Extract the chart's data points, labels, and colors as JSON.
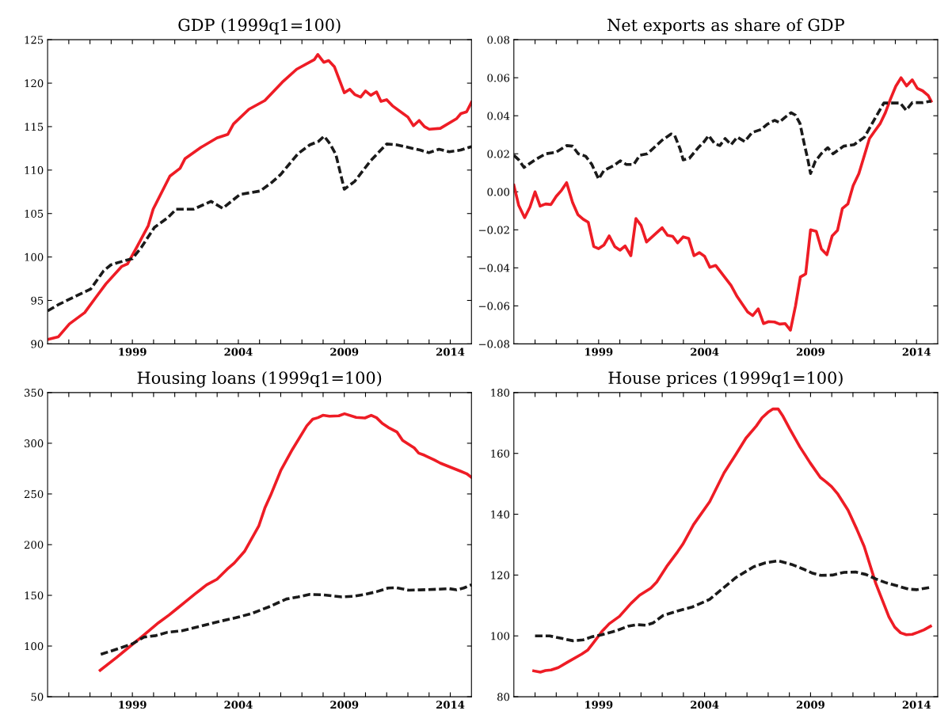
{
  "chart_data": [
    {
      "type": "line",
      "title": "GDP (1999q1=100)",
      "xlim": [
        1995,
        2015
      ],
      "ylim": [
        90,
        125
      ],
      "yticks": [
        90,
        95,
        100,
        105,
        110,
        115,
        120,
        125
      ],
      "xticks": [
        {
          "value": 1996,
          "label": null
        },
        {
          "value": 1997,
          "label": null
        },
        {
          "value": 1998,
          "label": null
        },
        1999,
        {
          "value": 2000,
          "label": null
        },
        {
          "value": 2001,
          "label": null
        },
        {
          "value": 2002,
          "label": null
        },
        {
          "value": 2003,
          "label": null
        },
        2004,
        {
          "value": 2005,
          "label": null
        },
        {
          "value": 2006,
          "label": null
        },
        {
          "value": 2007,
          "label": null
        },
        {
          "value": 2008,
          "label": null
        },
        2009,
        {
          "value": 2010,
          "label": null
        },
        {
          "value": 2011,
          "label": null
        },
        {
          "value": 2012,
          "label": null
        },
        {
          "value": 2013,
          "label": null
        },
        2014
      ],
      "grid": false,
      "series": [
        {
          "color": "#ee1c25",
          "line_style": "solid",
          "x": [
            1995.0,
            1995.5,
            1996.03,
            1996.75,
            1997.26,
            1997.75,
            1998.49,
            1998.77,
            1999.2,
            1999.75,
            1999.98,
            2000.77,
            2001.25,
            2001.48,
            2002.23,
            2002.99,
            2003.5,
            2003.77,
            2004.5,
            2005.25,
            2006.07,
            2006.75,
            2007.58,
            2007.75,
            2008.03,
            2008.26,
            2008.53,
            2009.0,
            2009.26,
            2009.49,
            2009.77,
            2010.0,
            2010.25,
            2010.52,
            2010.73,
            2011.0,
            2011.27,
            2012.0,
            2012.26,
            2012.53,
            2012.78,
            2013.01,
            2013.53,
            2014.29,
            2014.5,
            2014.77,
            2015.0
          ],
          "values": [
            90.5,
            90.8,
            92.3,
            93.6,
            95.3,
            96.9,
            98.9,
            99.2,
            101.1,
            103.6,
            105.5,
            109.3,
            110.2,
            111.3,
            112.6,
            113.7,
            114.1,
            115.3,
            117.0,
            118.0,
            120.1,
            121.6,
            122.7,
            123.3,
            122.4,
            122.6,
            121.9,
            118.9,
            119.3,
            118.7,
            118.4,
            119.1,
            118.6,
            119.0,
            117.9,
            118.1,
            117.4,
            116.1,
            115.1,
            115.7,
            115.0,
            114.7,
            114.8,
            115.9,
            116.5,
            116.7,
            117.8
          ]
        },
        {
          "color": "#1a1a1a",
          "line_style": "dashed",
          "x": [
            1995.0,
            1995.5,
            1996.5,
            1997.03,
            1997.64,
            1997.99,
            1998.53,
            1999.0,
            1999.42,
            2000.04,
            2000.66,
            2001.07,
            2001.89,
            2002.71,
            2003.26,
            2004.08,
            2005.04,
            2005.59,
            2006.0,
            2006.82,
            2007.37,
            2007.78,
            2008.05,
            2008.33,
            2008.6,
            2009.0,
            2009.49,
            2010.25,
            2011.0,
            2011.48,
            2012.03,
            2012.58,
            2012.99,
            2013.47,
            2013.95,
            2014.49,
            2015.0
          ],
          "values": [
            93.8,
            94.5,
            95.7,
            96.3,
            98.4,
            99.1,
            99.5,
            99.8,
            101.1,
            103.4,
            104.5,
            105.5,
            105.5,
            106.4,
            105.6,
            107.2,
            107.6,
            108.6,
            109.5,
            111.9,
            112.9,
            113.3,
            113.9,
            113.0,
            111.8,
            107.8,
            108.7,
            111.1,
            113.0,
            112.9,
            112.6,
            112.3,
            112.0,
            112.4,
            112.1,
            112.3,
            112.7
          ]
        }
      ]
    },
    {
      "type": "line",
      "title": "Net exports as share of GDP",
      "xlim": [
        1995,
        2015
      ],
      "ylim": [
        -0.08,
        0.08
      ],
      "yticks": [
        {
          "value": -0.08,
          "label": "−0.08"
        },
        {
          "value": -0.06,
          "label": "−0.06"
        },
        {
          "value": -0.04,
          "label": "−0.04"
        },
        {
          "value": -0.02,
          "label": "−0.02"
        },
        {
          "value": 0,
          "label": "0.00"
        },
        {
          "value": 0.02,
          "label": "0.02"
        },
        {
          "value": 0.04,
          "label": "0.04"
        },
        {
          "value": 0.06,
          "label": "0.06"
        },
        {
          "value": 0.08,
          "label": "0.08"
        }
      ],
      "xticks": [
        {
          "value": 1996,
          "label": null
        },
        {
          "value": 1997,
          "label": null
        },
        {
          "value": 1998,
          "label": null
        },
        1999,
        {
          "value": 2000,
          "label": null
        },
        {
          "value": 2001,
          "label": null
        },
        {
          "value": 2002,
          "label": null
        },
        {
          "value": 2003,
          "label": null
        },
        2004,
        {
          "value": 2005,
          "label": null
        },
        {
          "value": 2006,
          "label": null
        },
        {
          "value": 2007,
          "label": null
        },
        {
          "value": 2008,
          "label": null
        },
        2009,
        {
          "value": 2010,
          "label": null
        },
        {
          "value": 2011,
          "label": null
        },
        {
          "value": 2012,
          "label": null
        },
        {
          "value": 2013,
          "label": null
        },
        2014
      ],
      "grid": false,
      "series": [
        {
          "color": "#ee1c25",
          "line_style": "solid",
          "x": [
            1995.0,
            1995.23,
            1995.51,
            1995.76,
            1996.0,
            1996.24,
            1996.5,
            1996.75,
            1997.0,
            1997.25,
            1997.49,
            1997.77,
            1998.02,
            1998.27,
            1998.51,
            1998.77,
            1999.0,
            1999.25,
            1999.5,
            1999.76,
            2000.01,
            2000.25,
            2000.52,
            2000.76,
            2001.0,
            2001.26,
            2002.0,
            2002.25,
            2002.49,
            2002.73,
            2002.99,
            2003.25,
            2003.5,
            2003.75,
            2004.0,
            2004.25,
            2004.52,
            2005.25,
            2005.54,
            2006.03,
            2006.27,
            2006.53,
            2006.78,
            2007.02,
            2007.3,
            2007.54,
            2007.8,
            2008.05,
            2008.29,
            2008.52,
            2008.77,
            2009.0,
            2009.27,
            2009.51,
            2009.77,
            2010.02,
            2010.27,
            2010.5,
            2010.76,
            2011.01,
            2011.28,
            2011.54,
            2011.78,
            2012.03,
            2012.29,
            2012.53,
            2012.77,
            2013.02,
            2013.27,
            2013.53,
            2013.8,
            2014.04,
            2014.29,
            2014.55,
            2014.69
          ],
          "values": [
            0.0035,
            -0.0072,
            -0.0136,
            -0.008,
            0.0,
            -0.0075,
            -0.0064,
            -0.0067,
            -0.0024,
            0.0008,
            0.0048,
            -0.0056,
            -0.012,
            -0.0144,
            -0.016,
            -0.0288,
            -0.0299,
            -0.028,
            -0.0232,
            -0.0288,
            -0.0307,
            -0.0285,
            -0.0336,
            -0.0141,
            -0.0176,
            -0.0264,
            -0.0189,
            -0.0229,
            -0.0234,
            -0.0269,
            -0.0237,
            -0.0246,
            -0.0336,
            -0.032,
            -0.0339,
            -0.0397,
            -0.0387,
            -0.0493,
            -0.0552,
            -0.0632,
            -0.0651,
            -0.0616,
            -0.0693,
            -0.0683,
            -0.0685,
            -0.0696,
            -0.0693,
            -0.0728,
            -0.06,
            -0.0448,
            -0.0432,
            -0.02,
            -0.0208,
            -0.0301,
            -0.0331,
            -0.0232,
            -0.0203,
            -0.0088,
            -0.0064,
            0.0032,
            0.0096,
            0.0192,
            0.028,
            0.032,
            0.036,
            0.0416,
            0.0488,
            0.0555,
            0.06,
            0.0557,
            0.0589,
            0.0544,
            0.0531,
            0.0507,
            0.0477
          ]
        },
        {
          "color": "#1a1a1a",
          "line_style": "dashed",
          "x": [
            1995.0,
            1995.23,
            1995.48,
            1996.0,
            1996.5,
            1996.99,
            1997.49,
            1997.77,
            1998.04,
            1998.39,
            1998.68,
            1999.0,
            1999.25,
            1999.73,
            2000.02,
            2000.31,
            2000.66,
            2000.94,
            2001.3,
            2002.0,
            2002.42,
            2002.59,
            2002.85,
            2002.99,
            2003.28,
            2003.7,
            2003.98,
            2004.19,
            2004.48,
            2004.72,
            2004.97,
            2005.25,
            2005.54,
            2005.89,
            2006.24,
            2006.67,
            2006.95,
            2007.3,
            2007.51,
            2007.8,
            2008.08,
            2008.29,
            2008.5,
            2008.71,
            2008.86,
            2009.0,
            2009.22,
            2009.5,
            2009.81,
            2010.06,
            2010.56,
            2011.05,
            2011.55,
            2012.03,
            2012.46,
            2012.95,
            2013.23,
            2013.51,
            2013.8,
            2014.29,
            2014.69
          ],
          "values": [
            0.0192,
            0.0168,
            0.0128,
            0.0168,
            0.02,
            0.0208,
            0.0243,
            0.024,
            0.02,
            0.0187,
            0.0144,
            0.0067,
            0.0112,
            0.0139,
            0.0163,
            0.0144,
            0.0144,
            0.0192,
            0.02,
            0.0272,
            0.0304,
            0.0296,
            0.0224,
            0.0168,
            0.0176,
            0.0232,
            0.0264,
            0.0296,
            0.0253,
            0.0243,
            0.028,
            0.0248,
            0.0288,
            0.0264,
            0.0312,
            0.0328,
            0.0355,
            0.0376,
            0.0365,
            0.0392,
            0.0416,
            0.0403,
            0.036,
            0.0248,
            0.0176,
            0.0096,
            0.016,
            0.02,
            0.0232,
            0.02,
            0.024,
            0.0248,
            0.0288,
            0.0384,
            0.0467,
            0.0467,
            0.0467,
            0.0429,
            0.0469,
            0.0469,
            0.0477
          ]
        }
      ]
    },
    {
      "type": "line",
      "title": "Housing loans (1999q1=100)",
      "xlim": [
        1995,
        2015
      ],
      "ylim": [
        50,
        350
      ],
      "yticks": [
        50,
        100,
        150,
        200,
        250,
        300,
        350
      ],
      "xticks": [
        {
          "value": 1996,
          "label": null
        },
        {
          "value": 1997,
          "label": null
        },
        {
          "value": 1998,
          "label": null
        },
        1999,
        {
          "value": 2000,
          "label": null
        },
        {
          "value": 2001,
          "label": null
        },
        {
          "value": 2002,
          "label": null
        },
        {
          "value": 2003,
          "label": null
        },
        2004,
        {
          "value": 2005,
          "label": null
        },
        {
          "value": 2006,
          "label": null
        },
        {
          "value": 2007,
          "label": null
        },
        {
          "value": 2008,
          "label": null
        },
        2009,
        {
          "value": 2010,
          "label": null
        },
        {
          "value": 2011,
          "label": null
        },
        {
          "value": 2012,
          "label": null
        },
        {
          "value": 2013,
          "label": null
        },
        2014
      ],
      "grid": false,
      "series": [
        {
          "color": "#ee1c25",
          "line_style": "solid",
          "x": [
            1997.48,
            1998.26,
            1999.0,
            1999.42,
            2000.24,
            2000.73,
            2001.14,
            2001.96,
            2002.51,
            2002.99,
            2003.53,
            2003.81,
            2004.29,
            2004.97,
            2005.25,
            2005.52,
            2006.0,
            2006.55,
            2007.23,
            2007.51,
            2007.75,
            2007.99,
            2008.3,
            2008.74,
            2009.01,
            2009.56,
            2009.97,
            2010.27,
            2010.52,
            2010.79,
            2011.07,
            2011.48,
            2011.75,
            2012.3,
            2012.51,
            2012.78,
            2013.26,
            2013.53,
            2013.95,
            2014.49,
            2014.77,
            2015.0
          ],
          "values": [
            76,
            88.8,
            101.6,
            108.8,
            123.1,
            130.6,
            137.5,
            151.5,
            160.4,
            165.8,
            176.9,
            181.9,
            193.3,
            218.7,
            236.0,
            248.5,
            273.0,
            293.9,
            317.2,
            323.7,
            325.2,
            327.6,
            326.7,
            327.0,
            329.1,
            325.5,
            324.9,
            327.6,
            325.2,
            319.6,
            315.7,
            311.2,
            302.8,
            295.4,
            290.3,
            288.2,
            283.4,
            280.4,
            276.9,
            272.4,
            270.0,
            266.4
          ]
        },
        {
          "color": "#1a1a1a",
          "line_style": "dashed",
          "x": [
            1997.51,
            1998.26,
            1999.0,
            1999.55,
            2000.11,
            2000.66,
            2001.34,
            2002.16,
            2002.99,
            2003.88,
            2004.63,
            2005.45,
            2006.27,
            2006.82,
            2007.37,
            2007.92,
            2008.47,
            2008.88,
            2009.42,
            2009.97,
            2010.52,
            2011.07,
            2011.48,
            2012.03,
            2012.58,
            2013.4,
            2013.95,
            2014.29,
            2014.63,
            2015.0
          ],
          "values": [
            91.8,
            96.9,
            102.2,
            108.8,
            110.3,
            113.6,
            115.1,
            119.3,
            123.7,
            127.9,
            132.1,
            138.7,
            146.4,
            148.5,
            150.9,
            150.6,
            149.4,
            148.5,
            149.1,
            150.9,
            153.6,
            157.2,
            157.5,
            155.1,
            155.4,
            156.0,
            156.6,
            155.4,
            157.2,
            160.4
          ]
        }
      ]
    },
    {
      "type": "line",
      "title": "House prices (1999q1=100)",
      "xlim": [
        1995,
        2015
      ],
      "ylim": [
        80,
        180
      ],
      "yticks": [
        80,
        100,
        120,
        140,
        160,
        180
      ],
      "xticks": [
        {
          "value": 1996,
          "label": null
        },
        {
          "value": 1997,
          "label": null
        },
        {
          "value": 1998,
          "label": null
        },
        1999,
        {
          "value": 2000,
          "label": null
        },
        {
          "value": 2001,
          "label": null
        },
        {
          "value": 2002,
          "label": null
        },
        {
          "value": 2003,
          "label": null
        },
        2004,
        {
          "value": 2005,
          "label": null
        },
        {
          "value": 2006,
          "label": null
        },
        {
          "value": 2007,
          "label": null
        },
        {
          "value": 2008,
          "label": null
        },
        2009,
        {
          "value": 2010,
          "label": null
        },
        {
          "value": 2011,
          "label": null
        },
        {
          "value": 2012,
          "label": null
        },
        {
          "value": 2013,
          "label": null
        },
        2014
      ],
      "grid": false,
      "series": [
        {
          "color": "#ee1c25",
          "line_style": "solid",
          "x": [
            1995.94,
            1996.25,
            1996.49,
            1996.76,
            1997.1,
            1997.52,
            1998.2,
            1998.48,
            1998.75,
            1999.15,
            1999.5,
            1999.98,
            2000.53,
            2000.94,
            2001.46,
            2001.74,
            2002.25,
            2002.73,
            2002.97,
            2003.48,
            2004.24,
            2004.92,
            2005.47,
            2005.95,
            2006.44,
            2006.71,
            2006.99,
            2007.23,
            2007.47,
            2007.7,
            2008.02,
            2008.5,
            2008.98,
            2009.46,
            2009.74,
            2009.99,
            2010.29,
            2010.77,
            2011.18,
            2011.53,
            2012.08,
            2012.7,
            2012.97,
            2013.25,
            2013.52,
            2013.8,
            2014.07,
            2014.35,
            2014.66
          ],
          "values": [
            88.5,
            88.1,
            88.6,
            88.8,
            89.6,
            91.3,
            94.0,
            95.3,
            97.7,
            101.4,
            104.0,
            106.4,
            110.7,
            113.4,
            115.7,
            117.7,
            123.2,
            127.7,
            130.1,
            136.6,
            144.1,
            153.6,
            159.6,
            165.0,
            169.0,
            171.7,
            173.5,
            174.6,
            174.6,
            172.2,
            168.0,
            162.1,
            156.9,
            152.1,
            150.6,
            149.1,
            146.6,
            141.3,
            135.1,
            129.4,
            117.2,
            106.2,
            102.9,
            101.0,
            100.4,
            100.5,
            101.2,
            102.0,
            103.2
          ]
        },
        {
          "color": "#1a1a1a",
          "line_style": "dashed",
          "x": [
            1996.0,
            1996.69,
            1997.24,
            1997.79,
            1998.27,
            1998.68,
            1999.16,
            1999.84,
            2000.39,
            2000.81,
            2001.22,
            2001.56,
            2002.04,
            2002.73,
            2003.42,
            2004.24,
            2004.79,
            2005.48,
            2006.31,
            2006.86,
            2007.47,
            2008.1,
            2008.65,
            2009.06,
            2009.48,
            2010.03,
            2010.58,
            2011.13,
            2011.61,
            2012.09,
            2012.51,
            2013.06,
            2013.61,
            2014.02,
            2014.68
          ],
          "values": [
            100.0,
            100.0,
            99.2,
            98.4,
            98.7,
            99.7,
            100.4,
            101.7,
            103.2,
            103.7,
            103.5,
            104.2,
            106.7,
            108.2,
            109.5,
            112.0,
            115.2,
            119.2,
            122.7,
            124.0,
            124.7,
            123.5,
            122.0,
            120.7,
            119.9,
            120.0,
            120.9,
            121.0,
            120.2,
            118.7,
            117.6,
            116.5,
            115.4,
            115.2,
            116.0
          ]
        }
      ]
    }
  ]
}
